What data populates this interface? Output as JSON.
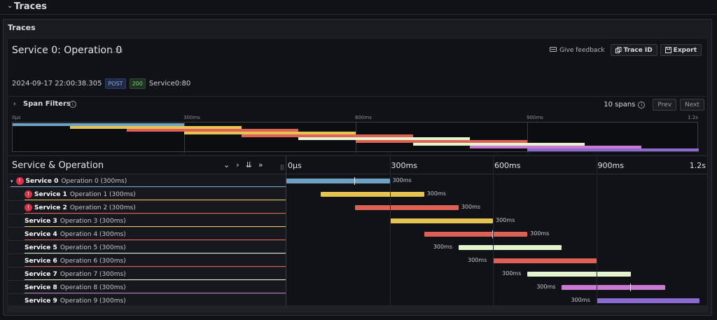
{
  "section": {
    "title": "Traces"
  },
  "panel": {
    "title": "Traces"
  },
  "trace": {
    "title": "Service 0: Operation 0",
    "duration": "1.2s",
    "timestamp": "2024-09-17 22:00:38.305",
    "method": "POST",
    "status": "200",
    "url": "Service0:80"
  },
  "toolbar": {
    "feedback": "Give feedback",
    "trace_id": "Trace ID",
    "export": "Export"
  },
  "filters": {
    "label": "Span Filters",
    "span_count": "10 spans",
    "prev": "Prev",
    "next": "Next"
  },
  "minimap": {
    "ticks": [
      "0µs",
      "300ms",
      "600ms",
      "900ms",
      "1.2s"
    ]
  },
  "grid": {
    "header": "Service & Operation",
    "ticks": [
      "0µs",
      "300ms",
      "600ms",
      "900ms",
      "1.2s"
    ]
  },
  "total_ms": 1200,
  "spans": [
    {
      "service": "Service 0",
      "operation": "Operation 0 (300ms)",
      "start_ms": 0,
      "duration_ms": 300,
      "label": "300ms",
      "color": "#6ca3c4",
      "error": true,
      "depth": 0
    },
    {
      "service": "Service 1",
      "operation": "Operation 1 (300ms)",
      "start_ms": 100,
      "duration_ms": 300,
      "label": "300ms",
      "color": "#e6c452",
      "error": true,
      "depth": 1
    },
    {
      "service": "Service 2",
      "operation": "Operation 2 (300ms)",
      "start_ms": 200,
      "duration_ms": 300,
      "label": "300ms",
      "color": "#dd6155",
      "error": true,
      "depth": 1
    },
    {
      "service": "Service 3",
      "operation": "Operation 3 (300ms)",
      "start_ms": 300,
      "duration_ms": 300,
      "label": "300ms",
      "color": "#e6c452",
      "error": false,
      "depth": 1
    },
    {
      "service": "Service 4",
      "operation": "Operation 4 (300ms)",
      "start_ms": 400,
      "duration_ms": 300,
      "label": "300ms",
      "color": "#dd6155",
      "error": false,
      "depth": 1
    },
    {
      "service": "Service 5",
      "operation": "Operation 5 (300ms)",
      "start_ms": 500,
      "duration_ms": 300,
      "label": "300ms",
      "color": "#e2f5cf",
      "error": false,
      "depth": 1
    },
    {
      "service": "Service 6",
      "operation": "Operation 6 (300ms)",
      "start_ms": 600,
      "duration_ms": 300,
      "label": "300ms",
      "color": "#dd6155",
      "error": false,
      "depth": 1
    },
    {
      "service": "Service 7",
      "operation": "Operation 7 (300ms)",
      "start_ms": 700,
      "duration_ms": 300,
      "label": "300ms",
      "color": "#e2f5cf",
      "error": false,
      "depth": 1
    },
    {
      "service": "Service 8",
      "operation": "Operation 8 (300ms)",
      "start_ms": 800,
      "duration_ms": 300,
      "label": "300ms",
      "color": "#c97bd4",
      "error": false,
      "depth": 1
    },
    {
      "service": "Service 9",
      "operation": "Operation 9 (300ms)",
      "start_ms": 900,
      "duration_ms": 300,
      "label": "300ms",
      "color": "#8d6ad1",
      "error": false,
      "depth": 1
    }
  ]
}
